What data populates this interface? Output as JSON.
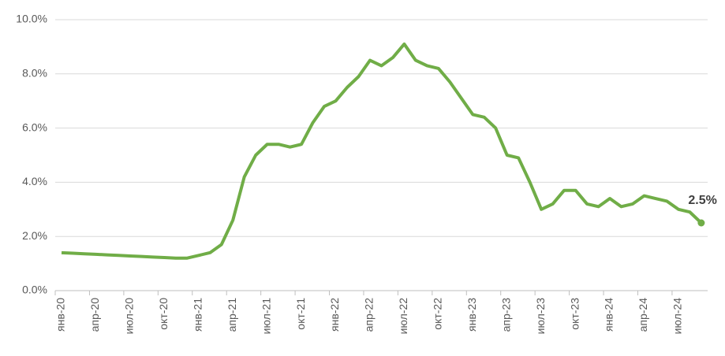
{
  "chart_data": {
    "type": "line",
    "categories": [
      "янв-20",
      null,
      null,
      "апр-20",
      null,
      null,
      "июл-20",
      null,
      null,
      "окт-20",
      null,
      null,
      "янв-21",
      null,
      null,
      "апр-21",
      null,
      null,
      "июл-21",
      null,
      null,
      "окт-21",
      null,
      null,
      "янв-22",
      null,
      null,
      "апр-22",
      null,
      null,
      "июл-22",
      null,
      null,
      "окт-22",
      null,
      null,
      "янв-23",
      null,
      null,
      "апр-23",
      null,
      null,
      "июл-23",
      null,
      null,
      "окт-23",
      null,
      null,
      "янв-24",
      null,
      null,
      "апр-24",
      null,
      null,
      "июл-24",
      null,
      null
    ],
    "values": [
      1.4,
      1.38,
      1.36,
      1.34,
      1.32,
      1.3,
      1.28,
      1.26,
      1.24,
      1.22,
      1.2,
      1.2,
      1.3,
      1.4,
      1.7,
      2.6,
      4.2,
      5.0,
      5.4,
      5.4,
      5.3,
      5.4,
      6.2,
      6.8,
      7.0,
      7.5,
      7.9,
      8.5,
      8.3,
      8.6,
      9.1,
      8.5,
      8.3,
      8.2,
      7.7,
      7.1,
      6.5,
      6.4,
      6.0,
      5.0,
      4.9,
      4.0,
      3.0,
      3.2,
      3.7,
      3.7,
      3.2,
      3.1,
      3.4,
      3.1,
      3.2,
      3.5,
      3.4,
      3.3,
      3.0,
      2.9,
      2.5
    ],
    "value_labels": [
      null,
      null,
      null,
      null,
      null,
      null,
      null,
      null,
      null,
      null,
      null,
      null,
      null,
      null,
      null,
      null,
      null,
      null,
      null,
      null,
      null,
      null,
      null,
      null,
      null,
      null,
      null,
      null,
      null,
      null,
      null,
      null,
      null,
      null,
      null,
      null,
      null,
      null,
      null,
      null,
      null,
      null,
      null,
      null,
      null,
      null,
      null,
      null,
      null,
      null,
      null,
      null,
      null,
      null,
      null,
      null,
      "2.5%"
    ],
    "color": "#70ad47",
    "ylim": [
      0,
      10
    ],
    "yticks": [
      {
        "value": 0,
        "label": "0.0%"
      },
      {
        "value": 2,
        "label": "2.0%"
      },
      {
        "value": 4,
        "label": "4.0%"
      },
      {
        "value": 6,
        "label": "6.0%"
      },
      {
        "value": 8,
        "label": "8.0%"
      },
      {
        "value": 10,
        "label": "10.0%"
      }
    ],
    "grid": true
  }
}
